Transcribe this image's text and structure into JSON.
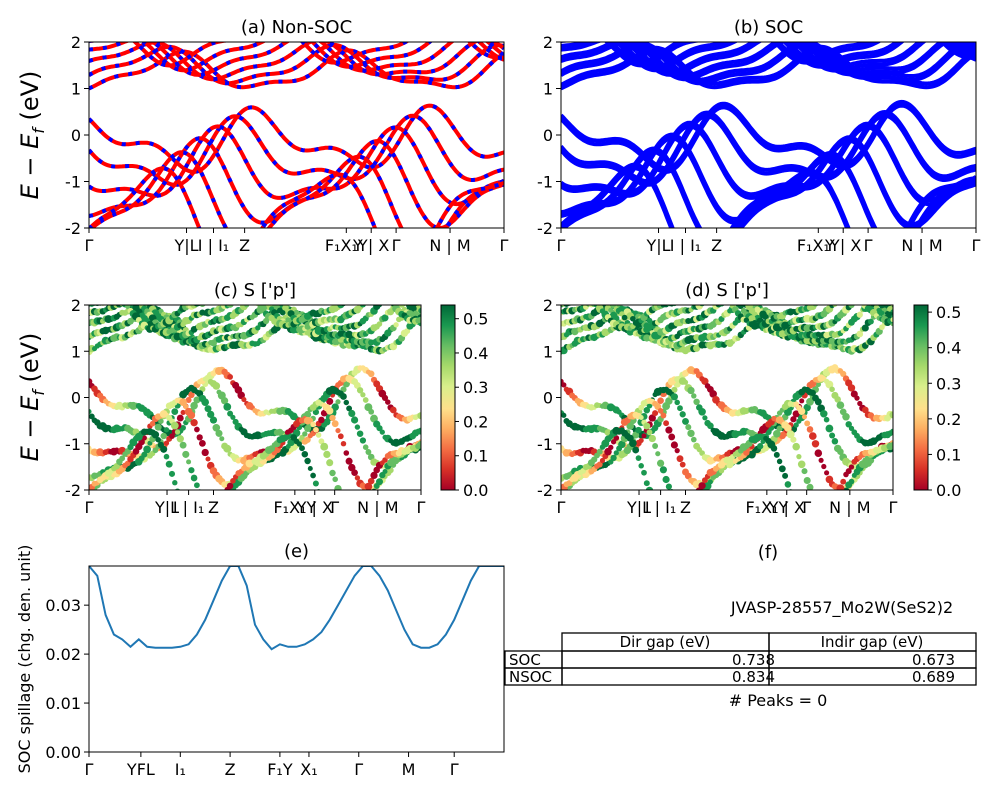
{
  "chart_data": [
    {
      "id": "a",
      "type": "line",
      "title": "(a) Non-SOC",
      "ylabel": "$E - E_f$ (eV)",
      "ylabel_parts": [
        "E − E",
        "f",
        " (eV)"
      ],
      "ylim": [
        -2,
        2
      ],
      "yticks": [
        -2,
        -1,
        0,
        1,
        2
      ],
      "xtick_labels": [
        "Γ",
        "Y",
        "L",
        "I",
        "I",
        "Z",
        "F",
        "X",
        "Y",
        "X",
        "Γ",
        "N",
        "M",
        "Γ"
      ],
      "xticks_display": [
        "Γ",
        "Y|L",
        "I | I₁",
        "Z",
        "F₁X₁Y",
        "Y | X",
        "Γ",
        "N | M",
        "Γ"
      ],
      "series": [
        {
          "name": "",
          "color": "#ff0000",
          "dash_color": "#0000ff"
        }
      ]
    },
    {
      "id": "b",
      "type": "line",
      "title": "(b) SOC",
      "ylim": [
        -2,
        2
      ],
      "yticks": [
        -2,
        -1,
        0,
        1,
        2
      ],
      "series": [
        {
          "name": "",
          "color": "#0000ff"
        }
      ]
    },
    {
      "id": "c",
      "type": "scatter",
      "title": "(c)  S ['p']",
      "ylabel": "$E - E_f$ (eV)",
      "ylim": [
        -2,
        2
      ],
      "yticks": [
        -2,
        -1,
        0,
        1,
        2
      ],
      "colorbar": {
        "min": 0.0,
        "max": 0.54,
        "ticks": [
          "0.0",
          "0.1",
          "0.2",
          "0.3",
          "0.4",
          "0.5"
        ],
        "cmap": "RdYlGn"
      }
    },
    {
      "id": "d",
      "type": "scatter",
      "title": "(d) S ['p']",
      "ylim": [
        -2,
        2
      ],
      "yticks": [
        -2,
        -1,
        0,
        1,
        2
      ],
      "colorbar": {
        "min": 0.0,
        "max": 0.52,
        "ticks": [
          "0.0",
          "0.1",
          "0.2",
          "0.3",
          "0.4",
          "0.5"
        ],
        "cmap": "RdYlGn"
      }
    },
    {
      "id": "e",
      "type": "line",
      "title": "(e)",
      "ylabel": "SOC spillage (chg. den. unit)",
      "ylim": [
        0,
        0.038
      ],
      "yticks": [
        "0.00",
        "0.01",
        "0.02",
        "0.03"
      ],
      "xtick_labels": [
        "Γ",
        "YFL",
        "I₁",
        "Z",
        "F₁Y",
        "X₁",
        "Γ",
        "M",
        "Γ"
      ],
      "x": [
        0,
        0.02,
        0.04,
        0.06,
        0.08,
        0.1,
        0.12,
        0.14,
        0.16,
        0.18,
        0.2,
        0.22,
        0.24,
        0.26,
        0.28,
        0.3,
        0.32,
        0.34,
        0.36,
        0.38,
        0.4,
        0.42,
        0.44,
        0.46,
        0.48,
        0.5,
        0.52,
        0.54,
        0.56,
        0.58,
        0.6,
        0.62,
        0.64,
        0.66,
        0.68,
        0.7,
        0.72,
        0.74,
        0.76,
        0.78,
        0.8,
        0.82,
        0.84,
        0.86,
        0.88,
        0.9,
        0.92,
        0.94,
        0.96,
        0.98,
        1.0
      ],
      "values": [
        0.038,
        0.036,
        0.028,
        0.024,
        0.023,
        0.0215,
        0.023,
        0.0215,
        0.0213,
        0.0213,
        0.0213,
        0.0215,
        0.022,
        0.024,
        0.027,
        0.031,
        0.035,
        0.038,
        0.038,
        0.034,
        0.026,
        0.023,
        0.021,
        0.022,
        0.0215,
        0.0215,
        0.022,
        0.023,
        0.0245,
        0.027,
        0.03,
        0.033,
        0.036,
        0.038,
        0.038,
        0.036,
        0.033,
        0.029,
        0.025,
        0.022,
        0.0213,
        0.0213,
        0.022,
        0.024,
        0.027,
        0.031,
        0.035,
        0.038,
        0.038,
        0.038,
        0.038
      ],
      "series": [
        {
          "name": "",
          "color": "#1f77b4"
        }
      ]
    }
  ],
  "panel_f": {
    "title": "(f)",
    "material": "JVASP-28557_Mo2W(SeS2)2",
    "table": {
      "headers": [
        "",
        "Dir gap (eV)",
        "Indir gap (eV)"
      ],
      "rows": [
        [
          "SOC",
          "0.738",
          "0.673"
        ],
        [
          "NSOC",
          "0.834",
          "0.689"
        ]
      ]
    },
    "peaks": "# Peaks = 0"
  }
}
